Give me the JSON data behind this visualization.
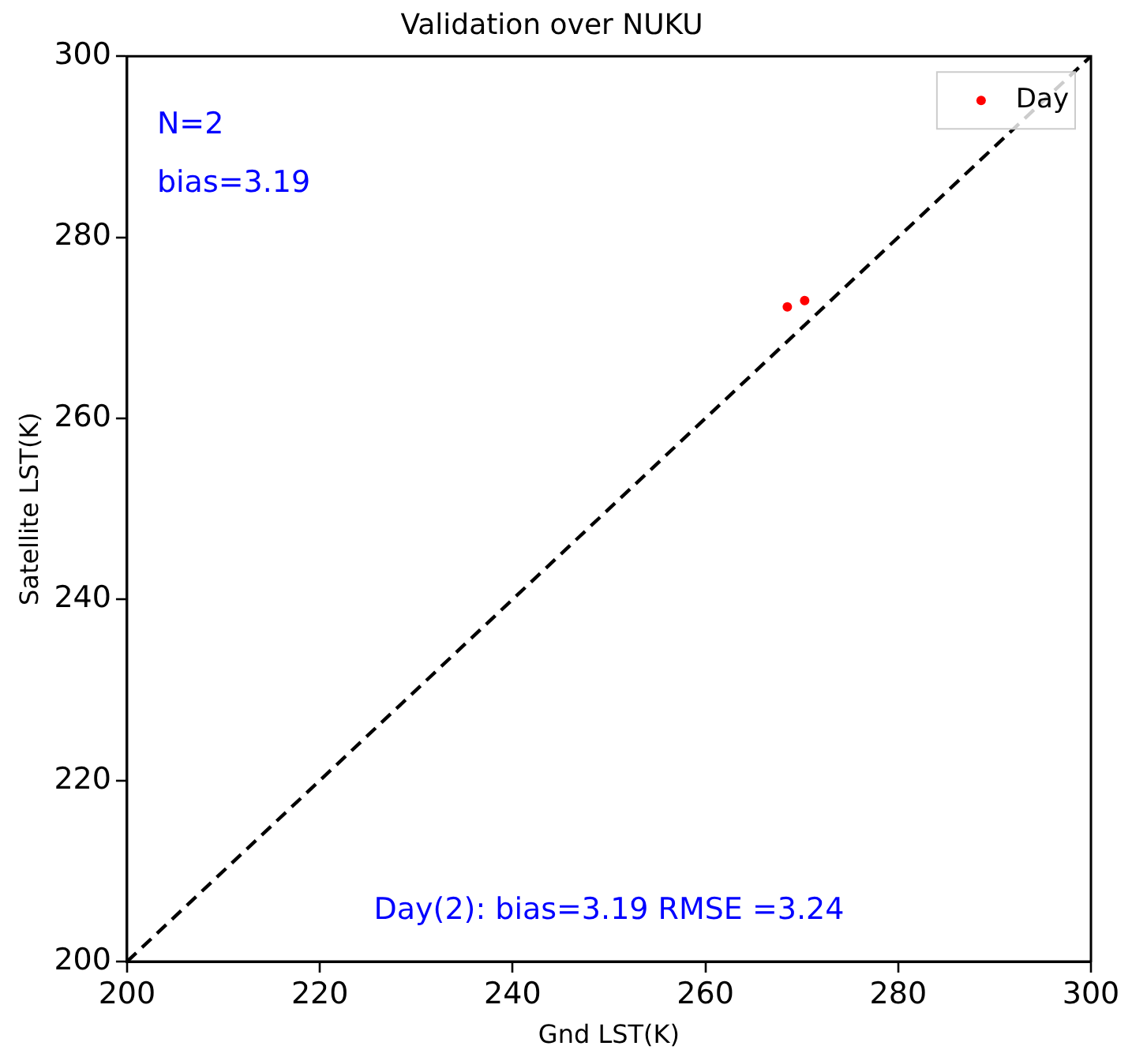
{
  "chart_data": {
    "type": "scatter",
    "title": "Validation over NUKU",
    "xlabel": "Gnd LST(K)",
    "ylabel": "Satellite LST(K)",
    "series": [
      {
        "name": "Day",
        "color": "#ff0000",
        "x": [
          268.5,
          270.3
        ],
        "values": [
          272.3,
          273.0
        ],
        "marker": "circle"
      },
      {
        "type": "line",
        "color": "#000000",
        "x": [
          200,
          300
        ],
        "values": [
          200,
          300
        ],
        "line_style": "dashed",
        "marker": "none"
      }
    ],
    "xlim": [
      200,
      300
    ],
    "ylim": [
      200,
      300
    ],
    "xticks": [
      200,
      220,
      240,
      260,
      280,
      300
    ],
    "yticks": [
      200,
      220,
      240,
      260,
      280,
      300
    ],
    "grid": false,
    "legend": "top right",
    "annotations": [
      "N=2",
      "bias=3.19",
      "Day(2): bias=3.19 RMSE =3.24"
    ]
  }
}
